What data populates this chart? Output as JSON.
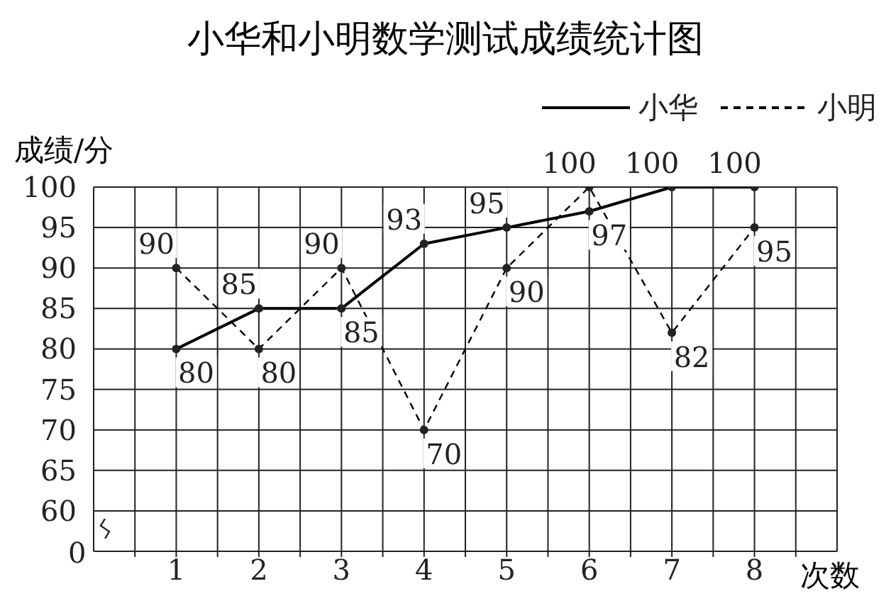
{
  "chart_data": {
    "type": "line",
    "title": "小华和小明数学测试成绩统计图",
    "xlabel": "次数",
    "ylabel": "成绩/分",
    "x": [
      1,
      2,
      3,
      4,
      5,
      6,
      7,
      8
    ],
    "xlim": [
      0,
      9
    ],
    "xticks": [
      {
        "value": 0.5,
        "label": null
      },
      1,
      {
        "value": 1.5,
        "label": null
      },
      2,
      {
        "value": 2.5,
        "label": null
      },
      3,
      {
        "value": 3.5,
        "label": null
      },
      4,
      {
        "value": 4.5,
        "label": null
      },
      5,
      {
        "value": 5.5,
        "label": null
      },
      6,
      {
        "value": 6.5,
        "label": null
      },
      7,
      {
        "value": 7.5,
        "label": null
      },
      8,
      {
        "value": 8.5,
        "label": null
      }
    ],
    "ylim": [
      55,
      100
    ],
    "yticks": [
      60,
      65,
      70,
      75,
      80,
      85,
      90,
      95,
      100
    ],
    "annotations": [
      "0"
    ],
    "series": [
      {
        "name": "小华",
        "color": "#000000",
        "line_style": "solid",
        "values": [
          80,
          85,
          85,
          93,
          95,
          97,
          100,
          100
        ]
      },
      {
        "name": "小明",
        "color": "#000000",
        "line_style": "dashed",
        "values": [
          90,
          80,
          90,
          70,
          90,
          100,
          82,
          95
        ]
      }
    ],
    "marker": "circle",
    "grid": true,
    "legend": "top right",
    "data_labels": true
  }
}
